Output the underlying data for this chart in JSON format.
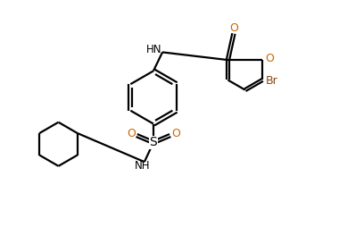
{
  "bg_color": "#ffffff",
  "line_color": "#000000",
  "bond_lw": 1.6,
  "text_color": "#000000",
  "br_color": "#8B4513",
  "o_color": "#cc6600",
  "figsize": [
    3.8,
    2.54
  ],
  "dpi": 100,
  "xlim": [
    0,
    10
  ],
  "ylim": [
    0,
    7
  ]
}
